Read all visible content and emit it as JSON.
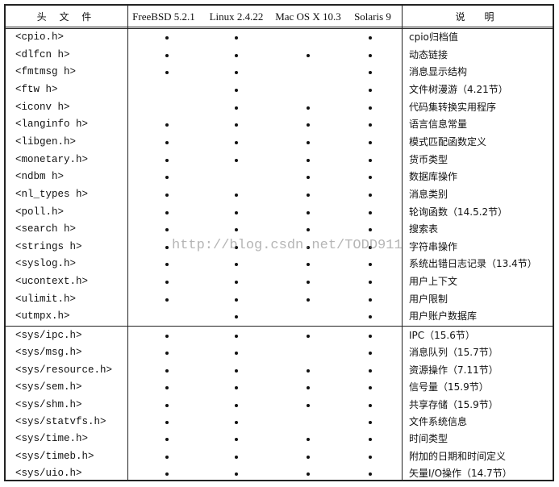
{
  "header": {
    "file": "头 文 件",
    "systems": [
      "FreeBSD 5.2.1",
      "Linux 2.4.22",
      "Mac OS X 10.3",
      "Solaris 9"
    ],
    "desc": "说　明"
  },
  "sections": [
    [
      {
        "file": "<cpio.h>",
        "s": [
          1,
          1,
          0,
          1
        ],
        "desc": "cpio归档值"
      },
      {
        "file": "<dlfcn h>",
        "s": [
          1,
          1,
          1,
          1
        ],
        "desc": "动态链接"
      },
      {
        "file": "<fmtmsg h>",
        "s": [
          1,
          1,
          0,
          1
        ],
        "desc": "消息显示结构"
      },
      {
        "file": "<ftw h>",
        "s": [
          0,
          1,
          0,
          1
        ],
        "desc": "文件树漫游（4.21节）"
      },
      {
        "file": "<iconv h>",
        "s": [
          0,
          1,
          1,
          1
        ],
        "desc": "代码集转换实用程序"
      },
      {
        "file": "<langinfo h>",
        "s": [
          1,
          1,
          1,
          1
        ],
        "desc": "语言信息常量"
      },
      {
        "file": "<libgen.h>",
        "s": [
          1,
          1,
          1,
          1
        ],
        "desc": "模式匹配函数定义"
      },
      {
        "file": "<monetary.h>",
        "s": [
          1,
          1,
          1,
          1
        ],
        "desc": "货币类型"
      },
      {
        "file": "<ndbm h>",
        "s": [
          1,
          0,
          1,
          1
        ],
        "desc": "数据库操作"
      },
      {
        "file": "<nl_types h>",
        "s": [
          1,
          1,
          1,
          1
        ],
        "desc": "消息类别"
      },
      {
        "file": "<poll.h>",
        "s": [
          1,
          1,
          1,
          1
        ],
        "desc": "轮询函数（14.5.2节）"
      },
      {
        "file": "<search h>",
        "s": [
          1,
          1,
          1,
          1
        ],
        "desc": "搜索表"
      },
      {
        "file": "<strings h>",
        "s": [
          1,
          1,
          1,
          1
        ],
        "desc": "字符串操作"
      },
      {
        "file": "<syslog.h>",
        "s": [
          1,
          1,
          1,
          1
        ],
        "desc": "系统出错日志记录（13.4节）"
      },
      {
        "file": "<ucontext.h>",
        "s": [
          1,
          1,
          1,
          1
        ],
        "desc": "用户上下文"
      },
      {
        "file": "<ulimit.h>",
        "s": [
          1,
          1,
          1,
          1
        ],
        "desc": "用户限制"
      },
      {
        "file": "<utmpx.h>",
        "s": [
          0,
          1,
          0,
          1
        ],
        "desc": "用户账户数据库"
      }
    ],
    [
      {
        "file": "<sys/ipc.h>",
        "s": [
          1,
          1,
          1,
          1
        ],
        "desc": "IPC（15.6节）"
      },
      {
        "file": "<sys/msg.h>",
        "s": [
          1,
          1,
          0,
          1
        ],
        "desc": "消息队列（15.7节）"
      },
      {
        "file": "<sys/resource.h>",
        "s": [
          1,
          1,
          1,
          1
        ],
        "desc": "资源操作（7.11节）"
      },
      {
        "file": "<sys/sem.h>",
        "s": [
          1,
          1,
          1,
          1
        ],
        "desc": "信号量（15.9节）"
      },
      {
        "file": "<sys/shm.h>",
        "s": [
          1,
          1,
          1,
          1
        ],
        "desc": "共享存储（15.9节）"
      },
      {
        "file": "<sys/statvfs.h>",
        "s": [
          1,
          1,
          0,
          1
        ],
        "desc": "文件系统信息"
      },
      {
        "file": "<sys/time.h>",
        "s": [
          1,
          1,
          1,
          1
        ],
        "desc": "时间类型"
      },
      {
        "file": "<sys/timeb.h>",
        "s": [
          1,
          1,
          1,
          1
        ],
        "desc": "附加的日期和时间定义"
      },
      {
        "file": "<sys/uio.h>",
        "s": [
          1,
          1,
          1,
          1
        ],
        "desc": "矢量I/O操作（14.7节）"
      }
    ]
  ],
  "watermark": "http://blog.csdn.net/TODD911"
}
